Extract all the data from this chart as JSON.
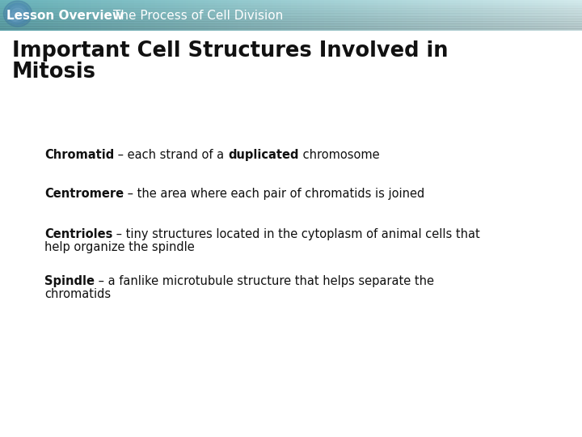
{
  "header_text1": "Lesson Overview",
  "header_text2": "The Process of Cell Division",
  "title_line1": "Important Cell Structures Involved in",
  "title_line2": "Mitosis",
  "bullet1_bold": "Chromatid",
  "bullet1_mid": " – each strand of a ",
  "bullet1_bold2": "duplicated",
  "bullet1_rest": " chromosome",
  "bullet2_bold": "Centromere",
  "bullet2_rest": " – the area where each pair of chromatids is joined",
  "bullet3_bold": "Centrioles",
  "bullet3_rest1": " – tiny structures located in the cytoplasm of animal cells that",
  "bullet3_rest2": "help organize the spindle",
  "bullet4_bold": "Spindle",
  "bullet4_rest1": " – a fanlike microtubule structure that helps separate the",
  "bullet4_rest2": "chromatids",
  "header_bg_teal": "#6ab5bc",
  "header_bg_light": "#cde8eb",
  "header_text_color": "#ffffff",
  "title_color": "#111111",
  "body_bg_color": "#ffffff",
  "bullet_color": "#111111",
  "fig_width": 7.2,
  "fig_height": 5.4,
  "dpi": 100
}
